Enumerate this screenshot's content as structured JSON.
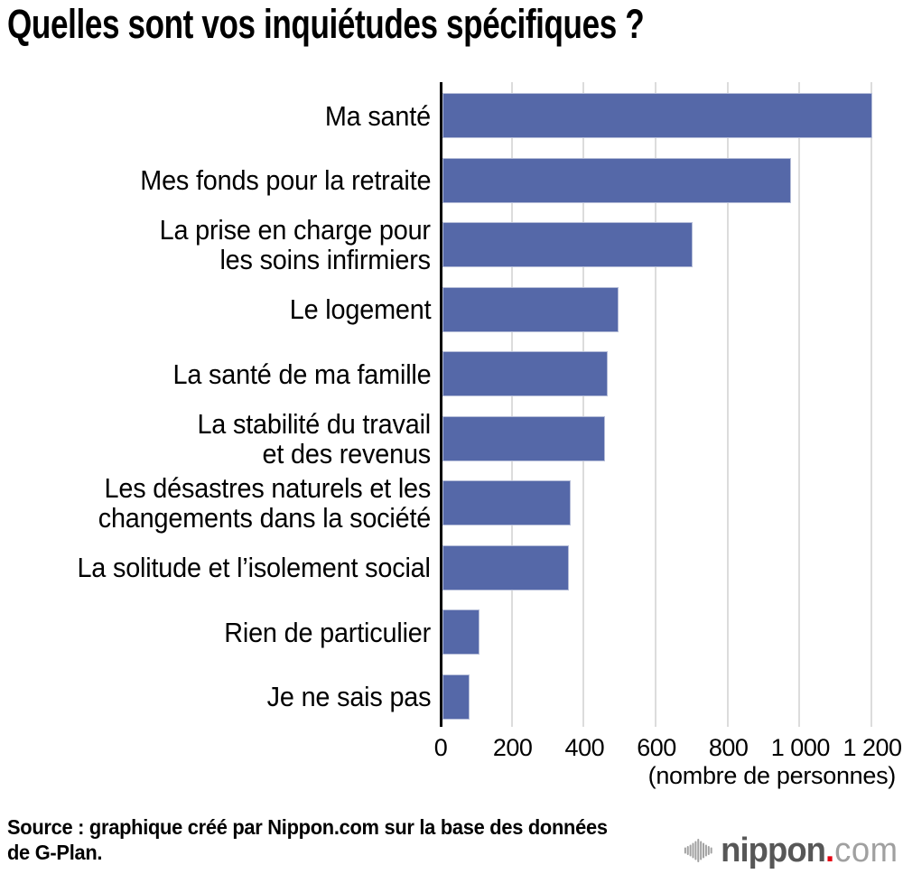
{
  "title": "Quelles sont vos inquiétudes spécifiques ?",
  "chart_data": {
    "type": "bar",
    "orientation": "horizontal",
    "title": "Quelles sont vos inquiétudes spécifiques ?",
    "categories": [
      "Ma santé",
      "Mes fonds pour la retraite",
      "La prise en charge pour\nles soins infirmiers",
      "Le logement",
      "La santé de ma famille",
      "La stabilité du travail\net des revenus",
      "Les désastres naturels et les\nchangements dans la société",
      "La solitude et l’isolement social",
      "Rien de particulier",
      "Je ne sais pas"
    ],
    "values": [
      1195,
      970,
      695,
      490,
      460,
      452,
      356,
      351,
      103,
      76
    ],
    "xlim": [
      0,
      1200
    ],
    "xticks": [
      0,
      200,
      400,
      600,
      800,
      1000,
      1200
    ],
    "xtick_labels": [
      "0",
      "200",
      "400",
      "600",
      "800",
      "1 000",
      "1 200"
    ],
    "xlabel": "(nombre de personnes)",
    "grid": true,
    "legend": false,
    "bar_color": "#5568a8",
    "grid_color": "#dcdcdc",
    "axis_color": "#000000"
  },
  "footer": {
    "source_line1": "Source : graphique créé par Nippon.com sur la base des données",
    "source_line2": "de G-Plan.",
    "logo": {
      "icon": "soundwave-bars-icon",
      "name": "nippon",
      "dot": ".",
      "tld": "com",
      "name_color": "#575757",
      "dot_color": "#e60012",
      "tld_color": "#a0a0a0",
      "icon_color": "#a2a2a2"
    }
  }
}
